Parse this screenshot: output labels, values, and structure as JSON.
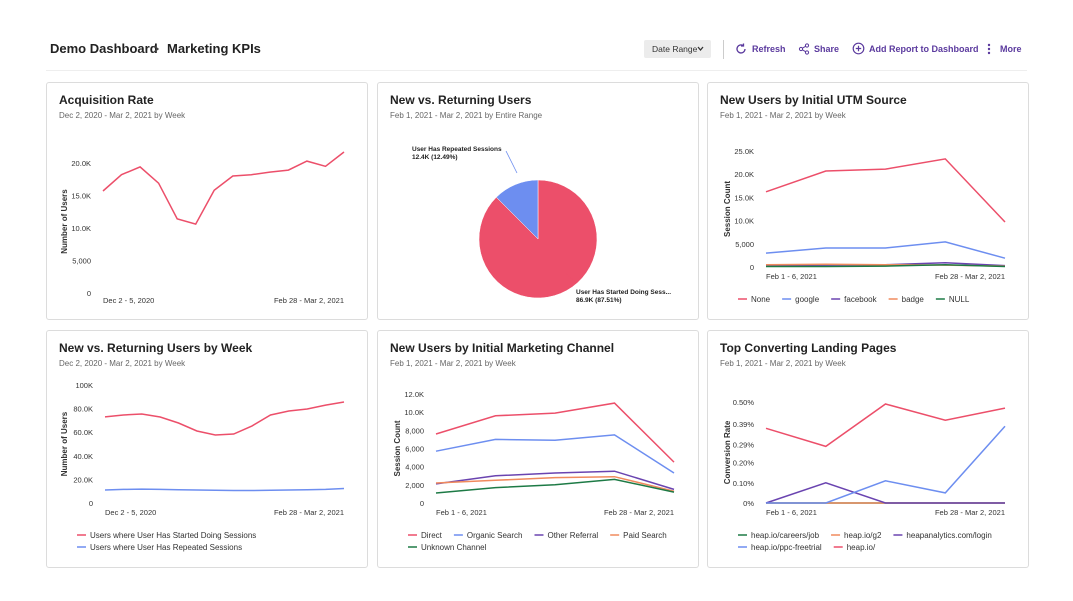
{
  "header": {
    "breadcrumb": [
      "Demo Dashboard",
      "Marketing KPIs"
    ],
    "actions": [
      "Date Range",
      "Refresh",
      "Share",
      "Add Report to Dashboard",
      "More"
    ]
  },
  "chart_data": [
    {
      "type": "line",
      "title": "Acquisition Rate",
      "subtitle": "Dec 2, 2020 - Mar 2, 2021 by Week",
      "y_label": "Number of Users",
      "categories": [
        "Dec 2 - 5, 2020",
        null,
        null,
        null,
        null,
        null,
        null,
        null,
        null,
        null,
        null,
        null,
        null,
        "Feb 28 - Mar 2, 2021"
      ],
      "values": [
        15700,
        18200,
        19400,
        16900,
        11400,
        10600,
        15800,
        18000,
        18200,
        18600,
        18900,
        20300,
        19500,
        21700
      ],
      "color": "#ec4f6a",
      "ylim": [
        0,
        22000
      ],
      "yticks": [
        0,
        {
          "value": 5000,
          "label": "5,000"
        },
        {
          "value": 10000,
          "label": "10.0K"
        },
        {
          "value": 15000,
          "label": "15.0K"
        },
        {
          "value": 20000,
          "label": "20.0K"
        }
      ]
    },
    {
      "type": "pie",
      "title": "New vs. Returning Users",
      "subtitle": "Feb 1, 2021 - Mar 2, 2021 by Entire Range",
      "categories": [
        "User Has Started Doing Sess...",
        "User Has Repeated Sessions"
      ],
      "values": [
        86900,
        12400
      ],
      "value_labels": [
        "86.9K (87.51%)",
        "12.4K (12.49%)"
      ],
      "colors": [
        "#ec4f6a",
        "#6d8ef0"
      ]
    },
    {
      "type": "line",
      "title": "New Users by Initial UTM Source",
      "subtitle": "Feb 1, 2021 - Mar 2, 2021 by Week",
      "y_label": "Session Count",
      "categories": [
        "Feb 1 - 6, 2021",
        null,
        null,
        null,
        "Feb 28 - Mar 2, 2021"
      ],
      "series": [
        {
          "name": "None",
          "color": "#ec4f6a",
          "values": [
            16200,
            20700,
            21100,
            23300,
            9700
          ]
        },
        {
          "name": "google",
          "color": "#6d8ef0",
          "values": [
            3000,
            4100,
            4100,
            5400,
            1900
          ]
        },
        {
          "name": "facebook",
          "color": "#6a44b0",
          "values": [
            300,
            400,
            500,
            900,
            300
          ]
        },
        {
          "name": "badge",
          "color": "#f08a5d",
          "values": [
            500,
            600,
            500,
            400,
            200
          ]
        },
        {
          "name": "NULL",
          "color": "#1d7a45",
          "values": [
            100,
            100,
            200,
            500,
            100
          ]
        }
      ],
      "ylim": [
        0,
        25000
      ],
      "yticks": [
        0,
        {
          "value": 5000,
          "label": "5,000"
        },
        {
          "value": 10000,
          "label": "10.0K"
        },
        {
          "value": 15000,
          "label": "15.0K"
        },
        {
          "value": 20000,
          "label": "20.0K"
        },
        {
          "value": 25000,
          "label": "25.0K"
        }
      ]
    },
    {
      "type": "line",
      "title": "New vs. Returning Users by Week",
      "subtitle": "Dec 2, 2020 - Mar 2, 2021 by Week",
      "y_label": "Number of Users",
      "categories": [
        "Dec 2 - 5, 2020",
        null,
        null,
        null,
        null,
        null,
        null,
        null,
        null,
        null,
        null,
        null,
        null,
        "Feb 28 - Mar 2, 2021"
      ],
      "series": [
        {
          "name": "Users where User Has Started Doing Sessions",
          "color": "#ec4f6a",
          "values": [
            73000,
            74600,
            75400,
            72900,
            67800,
            61000,
            57600,
            58500,
            65300,
            74600,
            78000,
            79700,
            83000,
            85600
          ]
        },
        {
          "name": "Users where User Has Repeated Sessions",
          "color": "#6d8ef0",
          "values": [
            11000,
            11500,
            11800,
            11500,
            11200,
            11000,
            10800,
            10600,
            10600,
            10800,
            11000,
            11200,
            11500,
            12300
          ]
        }
      ],
      "ylim": [
        0,
        100000
      ],
      "yticks": [
        0,
        {
          "value": 20000,
          "label": "20.0K"
        },
        {
          "value": 40000,
          "label": "40.0K"
        },
        {
          "value": 60000,
          "label": "60.0K"
        },
        {
          "value": 80000,
          "label": "80.0K"
        },
        {
          "value": 100000,
          "label": "100K"
        }
      ]
    },
    {
      "type": "line",
      "title": "New Users by Initial Marketing Channel",
      "subtitle": "Feb 1, 2021 - Mar 2, 2021 by Week",
      "y_label": "Session Count",
      "categories": [
        "Feb 1 - 6, 2021",
        null,
        null,
        null,
        "Feb 28 - Mar 2, 2021"
      ],
      "series": [
        {
          "name": "Direct",
          "color": "#ec4f6a",
          "values": [
            7600,
            9600,
            9900,
            11000,
            4500
          ]
        },
        {
          "name": "Organic Search",
          "color": "#6d8ef0",
          "values": [
            5700,
            7000,
            6900,
            7500,
            3300
          ]
        },
        {
          "name": "Other Referral",
          "color": "#6a44b0",
          "values": [
            2100,
            3000,
            3300,
            3500,
            1500
          ]
        },
        {
          "name": "Paid Search",
          "color": "#f08a5d",
          "values": [
            2200,
            2500,
            2800,
            2900,
            1300
          ]
        },
        {
          "name": "Unknown Channel",
          "color": "#1d7a45",
          "values": [
            1100,
            1700,
            2000,
            2600,
            1200
          ]
        }
      ],
      "ylim": [
        0,
        12000
      ],
      "yticks": [
        0,
        {
          "value": 2000,
          "label": "2,000"
        },
        {
          "value": 4000,
          "label": "4,000"
        },
        {
          "value": 6000,
          "label": "6,000"
        },
        {
          "value": 8000,
          "label": "8,000"
        },
        {
          "value": 10000,
          "label": "10.0K"
        },
        {
          "value": 12000,
          "label": "12.0K"
        }
      ]
    },
    {
      "type": "line",
      "title": "Top Converting Landing Pages",
      "subtitle": "Feb 1, 2021 - Mar 2, 2021 by Week",
      "y_label": "Conversion Rate",
      "categories": [
        "Feb 1 - 6, 2021",
        null,
        null,
        null,
        "Feb 28 - Mar 2, 2021"
      ],
      "series": [
        {
          "name": "heap.io/careers/job",
          "color": "#1d7a45",
          "values": [
            0,
            0,
            0,
            0,
            0
          ]
        },
        {
          "name": "heap.io/g2",
          "color": "#f08a5d",
          "values": [
            0,
            0,
            0,
            0,
            0
          ]
        },
        {
          "name": "heapanalytics.com/login",
          "color": "#6a44b0",
          "values": [
            0,
            0.1,
            0,
            0,
            0
          ]
        },
        {
          "name": "heap.io/ppc-freetrial",
          "color": "#6d8ef0",
          "values": [
            0,
            0,
            0.11,
            0.05,
            0.38
          ]
        },
        {
          "name": "heap.io/",
          "color": "#ec4f6a",
          "values": [
            0.37,
            0.28,
            0.49,
            0.41,
            0.47
          ]
        }
      ],
      "ylim": [
        0,
        0.5
      ],
      "yticks": [
        {
          "value": 0,
          "label": "0%"
        },
        {
          "value": 0.1,
          "label": "0.10%"
        },
        {
          "value": 0.2,
          "label": "0.20%"
        },
        {
          "value": 0.29,
          "label": "0.29%"
        },
        {
          "value": 0.39,
          "label": "0.39%"
        },
        {
          "value": 0.5,
          "label": "0.50%"
        }
      ]
    }
  ]
}
